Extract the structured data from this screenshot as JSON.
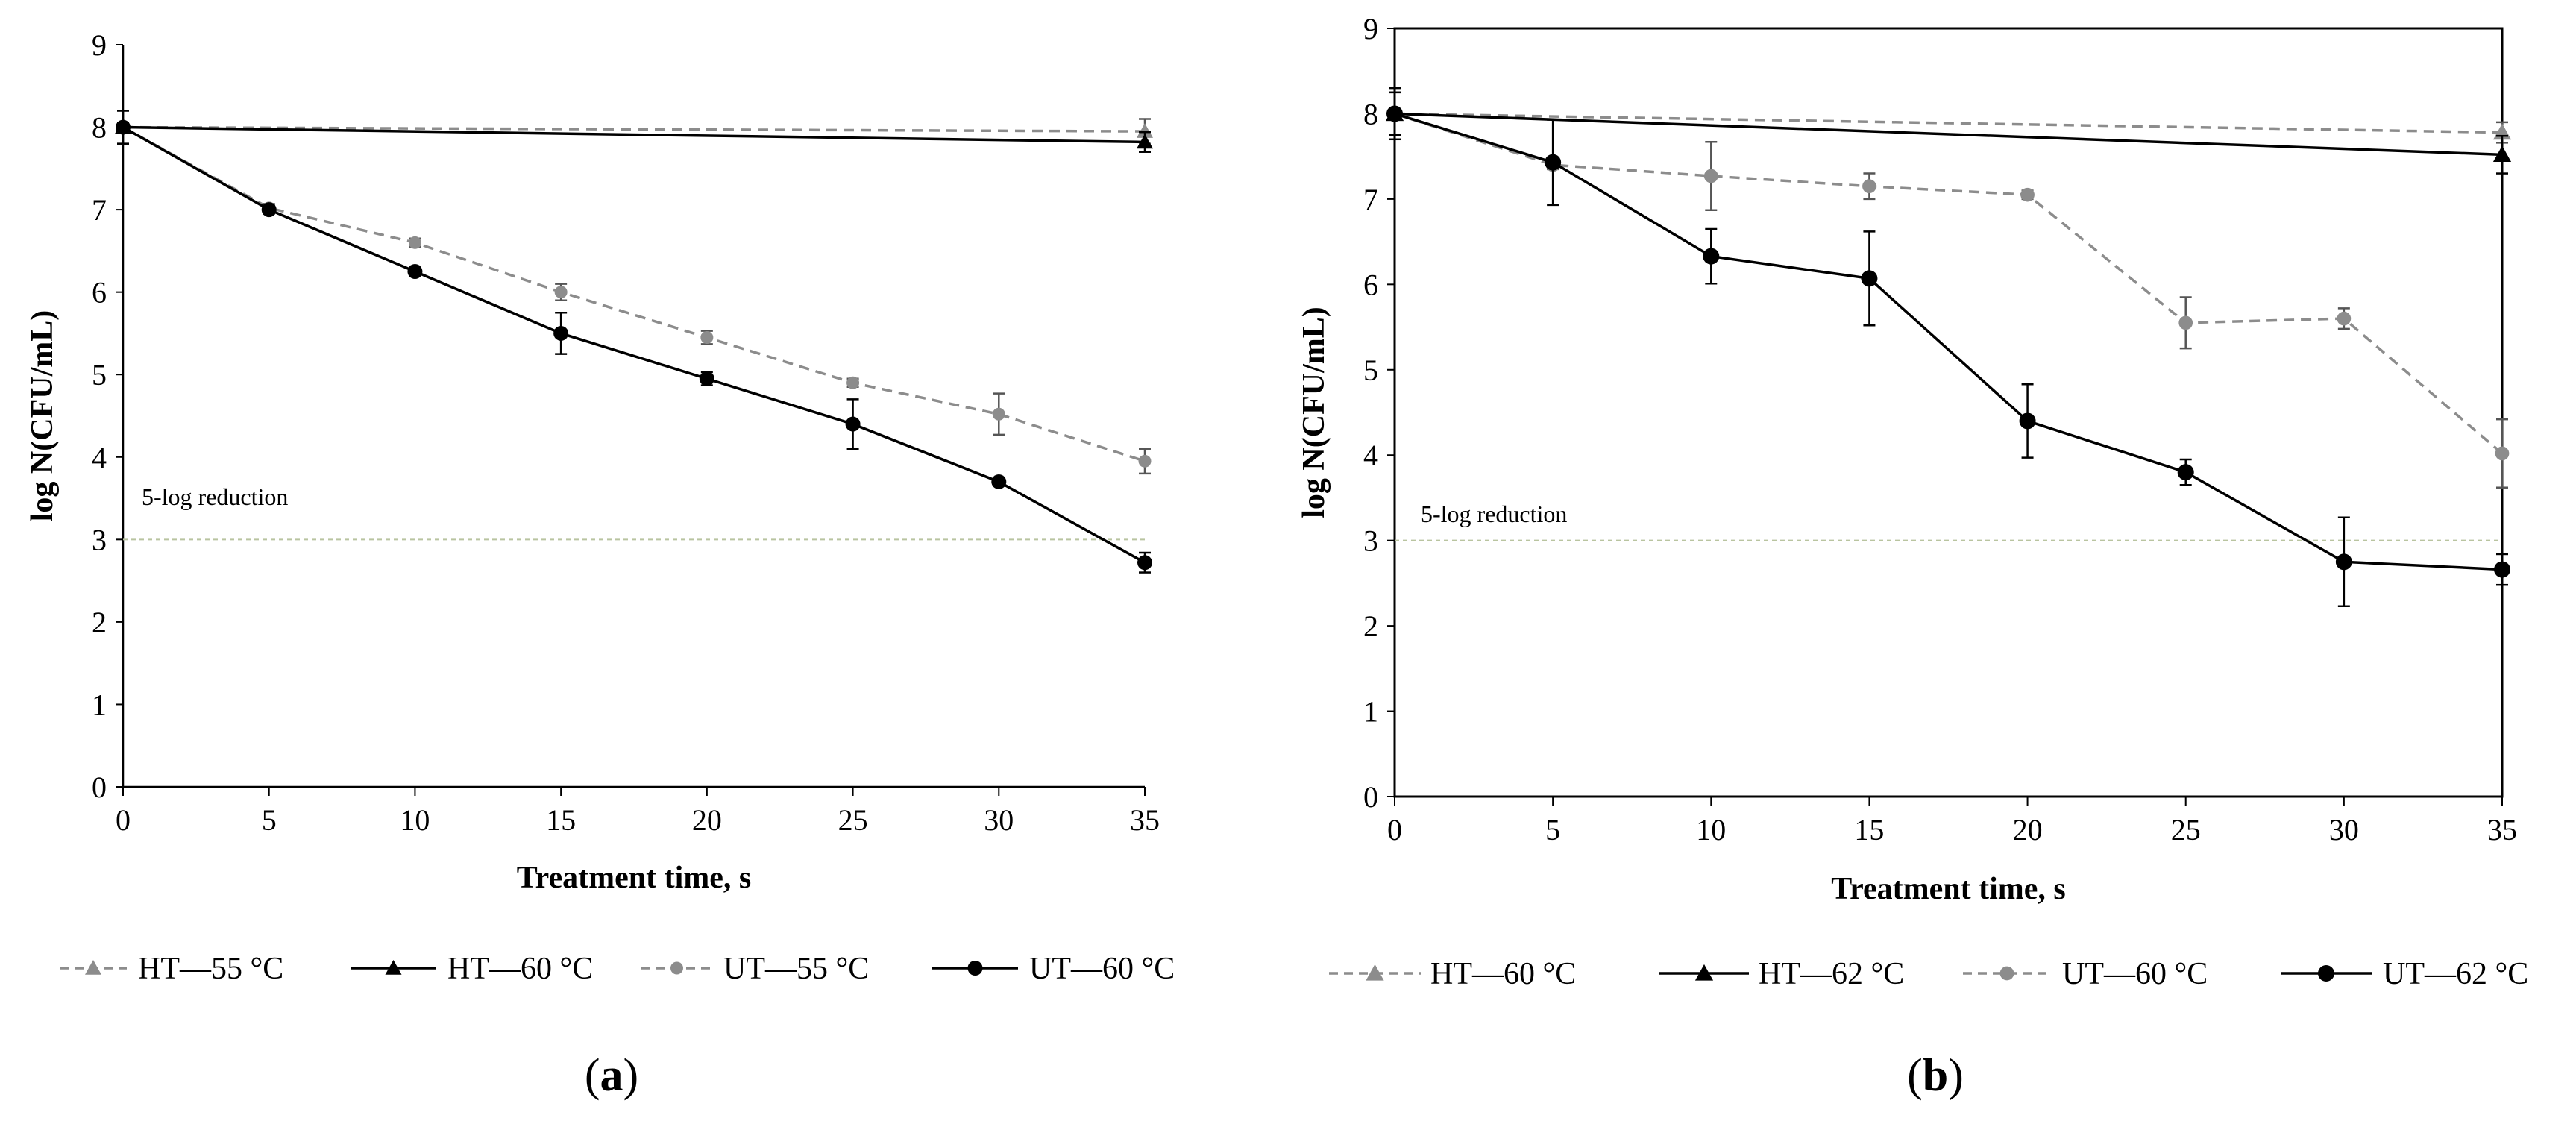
{
  "colors": {
    "black": "#000000",
    "gray": "#8c8c8c",
    "reference": "#b9c4a0"
  },
  "chart_data": [
    {
      "type": "line",
      "panel_label": "(a)",
      "panel_letter": "a",
      "xlabel": "Treatment time, s",
      "ylabel": "log N(CFU/mL)",
      "xlim": [
        0,
        35
      ],
      "ylim": [
        0,
        9
      ],
      "xticks": [
        0,
        5,
        10,
        15,
        20,
        25,
        30,
        35
      ],
      "yticks": [
        0,
        1,
        2,
        3,
        4,
        5,
        6,
        7,
        8,
        9
      ],
      "reference_line": {
        "y": 3,
        "label": "5-log reduction"
      },
      "series": [
        {
          "name": "HT—55 °C",
          "color": "#8c8c8c",
          "dash": true,
          "marker": "triangle",
          "x": [
            0,
            35
          ],
          "y": [
            8.0,
            7.95
          ],
          "err": [
            0.2,
            0.15
          ]
        },
        {
          "name": "HT—60 °C",
          "color": "#000000",
          "dash": false,
          "marker": "triangle",
          "x": [
            0,
            35
          ],
          "y": [
            8.0,
            7.82
          ],
          "err": [
            0.2,
            0.12
          ]
        },
        {
          "name": "UT—55 °C",
          "color": "#8c8c8c",
          "dash": true,
          "marker": "circle",
          "x": [
            0,
            5,
            10,
            15,
            20,
            25,
            30,
            35
          ],
          "y": [
            8.0,
            7.02,
            6.6,
            6.0,
            5.45,
            4.9,
            4.52,
            3.95
          ],
          "err": [
            0.05,
            0.05,
            0.05,
            0.1,
            0.08,
            0.05,
            0.25,
            0.15
          ]
        },
        {
          "name": "UT—60 °C",
          "color": "#000000",
          "dash": false,
          "marker": "circle",
          "x": [
            0,
            5,
            10,
            15,
            20,
            25,
            30,
            35
          ],
          "y": [
            8.0,
            7.0,
            6.25,
            5.5,
            4.95,
            4.4,
            3.7,
            2.72
          ],
          "err": [
            0.05,
            0.05,
            0.05,
            0.25,
            0.08,
            0.3,
            0.05,
            0.12
          ]
        }
      ]
    },
    {
      "type": "line",
      "panel_label": "(b)",
      "panel_letter": "b",
      "xlabel": "Treatment time, s",
      "ylabel": "log N(CFU/mL)",
      "xlim": [
        0,
        35
      ],
      "ylim": [
        0,
        9
      ],
      "xticks": [
        0,
        5,
        10,
        15,
        20,
        25,
        30,
        35
      ],
      "yticks": [
        0,
        1,
        2,
        3,
        4,
        5,
        6,
        7,
        8,
        9
      ],
      "reference_line": {
        "y": 3,
        "label": "5-log reduction"
      },
      "series": [
        {
          "name": "HT—60 °C",
          "color": "#8c8c8c",
          "dash": true,
          "marker": "triangle",
          "x": [
            0,
            35
          ],
          "y": [
            8.0,
            7.78
          ],
          "err": [
            0.25,
            0.12
          ]
        },
        {
          "name": "HT—62 °C",
          "color": "#000000",
          "dash": false,
          "marker": "triangle",
          "x": [
            0,
            35
          ],
          "y": [
            8.0,
            7.52
          ],
          "err": [
            0.25,
            0.22
          ]
        },
        {
          "name": "UT—60 °C",
          "color": "#8c8c8c",
          "dash": true,
          "marker": "circle",
          "x": [
            0,
            5,
            10,
            15,
            20,
            25,
            30,
            35
          ],
          "y": [
            8.0,
            7.4,
            7.27,
            7.15,
            7.05,
            5.55,
            5.6,
            4.02
          ],
          "err": [
            0.05,
            0.05,
            0.4,
            0.15,
            0.05,
            0.3,
            0.12,
            0.4
          ]
        },
        {
          "name": "UT—62 °C",
          "color": "#000000",
          "dash": false,
          "marker": "circle",
          "x": [
            0,
            5,
            10,
            15,
            20,
            25,
            30,
            35
          ],
          "y": [
            8.0,
            7.43,
            6.33,
            6.07,
            4.4,
            3.8,
            2.75,
            2.66
          ],
          "err": [
            0.3,
            0.5,
            0.32,
            0.55,
            0.43,
            0.15,
            0.52,
            0.18
          ]
        }
      ]
    }
  ]
}
